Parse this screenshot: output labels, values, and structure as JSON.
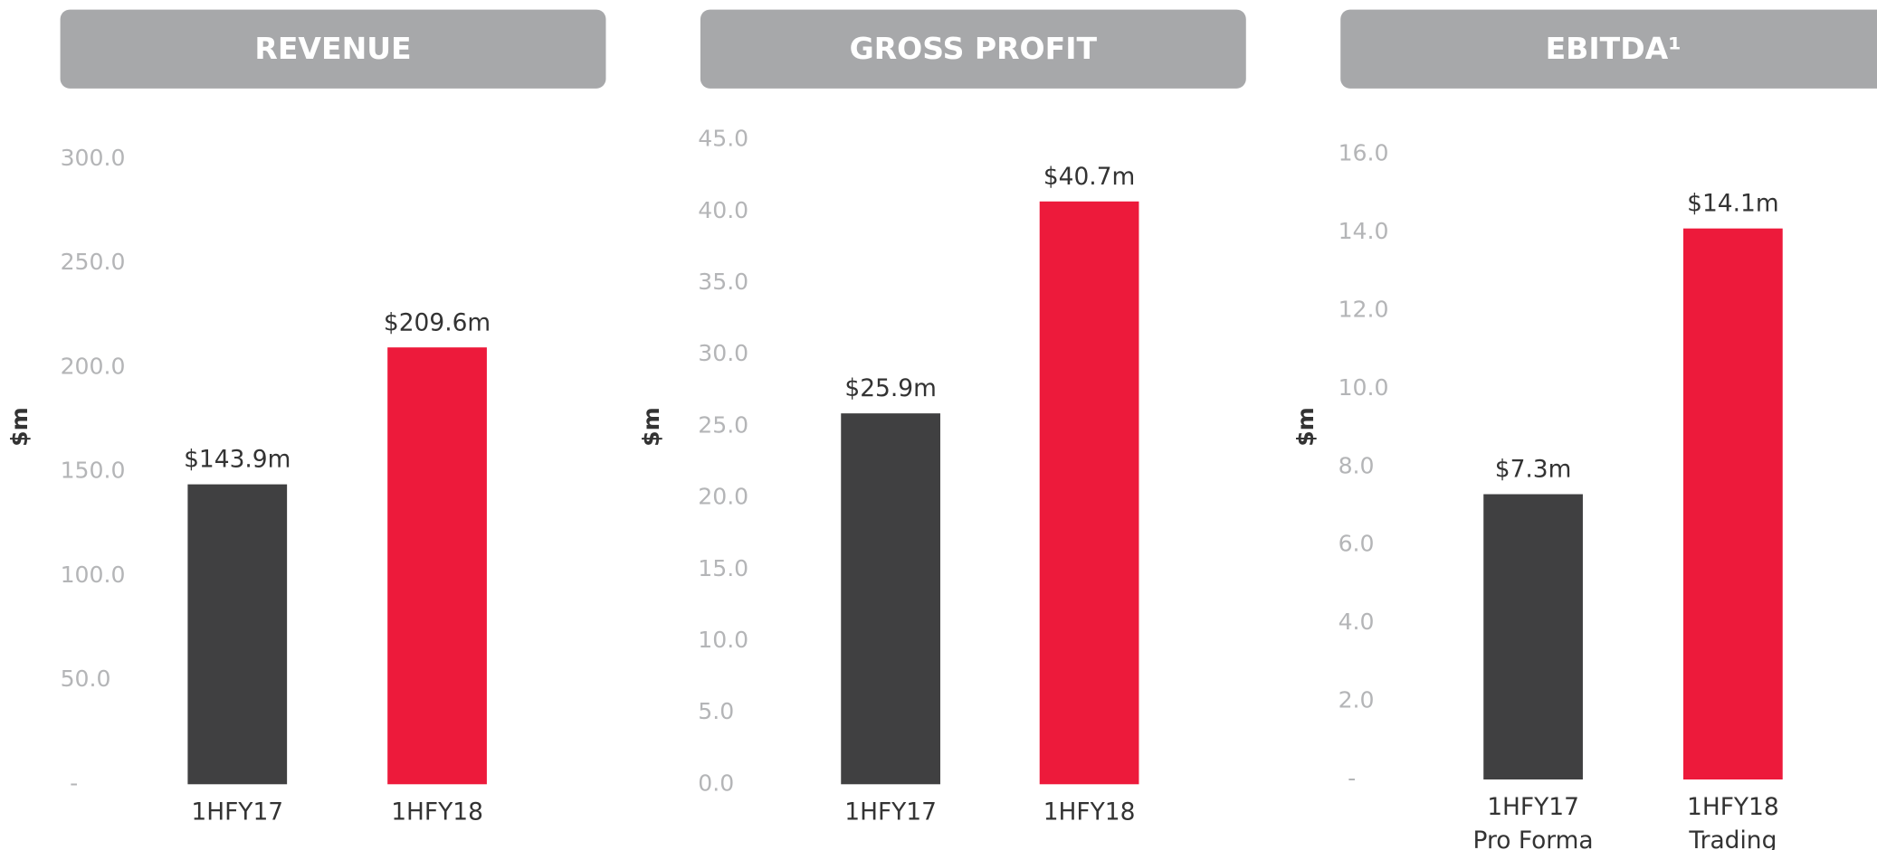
{
  "chart_data": [
    {
      "type": "bar",
      "title": "REVENUE",
      "y_label": "$m",
      "categories": [
        [
          "1HFY17"
        ],
        [
          "1HFY18"
        ]
      ],
      "values": [
        143.9,
        209.6
      ],
      "value_labels": [
        "$143.9m",
        "$209.6m"
      ],
      "colors": [
        "#404041",
        "#ed1a3b"
      ],
      "ylim": [
        0,
        300
      ],
      "yticks": [
        {
          "value": 0,
          "label": "-"
        },
        {
          "value": 50,
          "label": "50.0"
        },
        {
          "value": 100,
          "label": "100.0"
        },
        {
          "value": 150,
          "label": "150.0"
        },
        {
          "value": 200,
          "label": "200.0"
        },
        {
          "value": 250,
          "label": "250.0"
        },
        {
          "value": 300,
          "label": "300.0"
        }
      ]
    },
    {
      "type": "bar",
      "title": "GROSS PROFIT",
      "y_label": "$m",
      "categories": [
        [
          "1HFY17"
        ],
        [
          "1HFY18"
        ]
      ],
      "values": [
        25.9,
        40.7
      ],
      "value_labels": [
        "$25.9m",
        "$40.7m"
      ],
      "colors": [
        "#404041",
        "#ed1a3b"
      ],
      "ylim": [
        0,
        45
      ],
      "yticks": [
        {
          "value": 0,
          "label": "0.0"
        },
        {
          "value": 5,
          "label": "5.0"
        },
        {
          "value": 10,
          "label": "10.0"
        },
        {
          "value": 15,
          "label": "15.0"
        },
        {
          "value": 20,
          "label": "20.0"
        },
        {
          "value": 25,
          "label": "25.0"
        },
        {
          "value": 30,
          "label": "30.0"
        },
        {
          "value": 35,
          "label": "35.0"
        },
        {
          "value": 40,
          "label": "40.0"
        },
        {
          "value": 45,
          "label": "45.0"
        }
      ]
    },
    {
      "type": "bar",
      "title": "EBITDA¹",
      "y_label": "$m",
      "categories": [
        [
          "1HFY17",
          "Pro Forma"
        ],
        [
          "1HFY18",
          "Trading"
        ]
      ],
      "values": [
        7.3,
        14.1
      ],
      "value_labels": [
        "$7.3m",
        "$14.1m"
      ],
      "colors": [
        "#404041",
        "#ed1a3b"
      ],
      "ylim": [
        0,
        16
      ],
      "yticks": [
        {
          "value": 0,
          "label": "-"
        },
        {
          "value": 2,
          "label": "2.0"
        },
        {
          "value": 4,
          "label": "4.0"
        },
        {
          "value": 6,
          "label": "6.0"
        },
        {
          "value": 8,
          "label": "8.0"
        },
        {
          "value": 10,
          "label": "10.0"
        },
        {
          "value": 12,
          "label": "12.0"
        },
        {
          "value": 14,
          "label": "14.0"
        },
        {
          "value": 16,
          "label": "16.0"
        }
      ]
    }
  ]
}
